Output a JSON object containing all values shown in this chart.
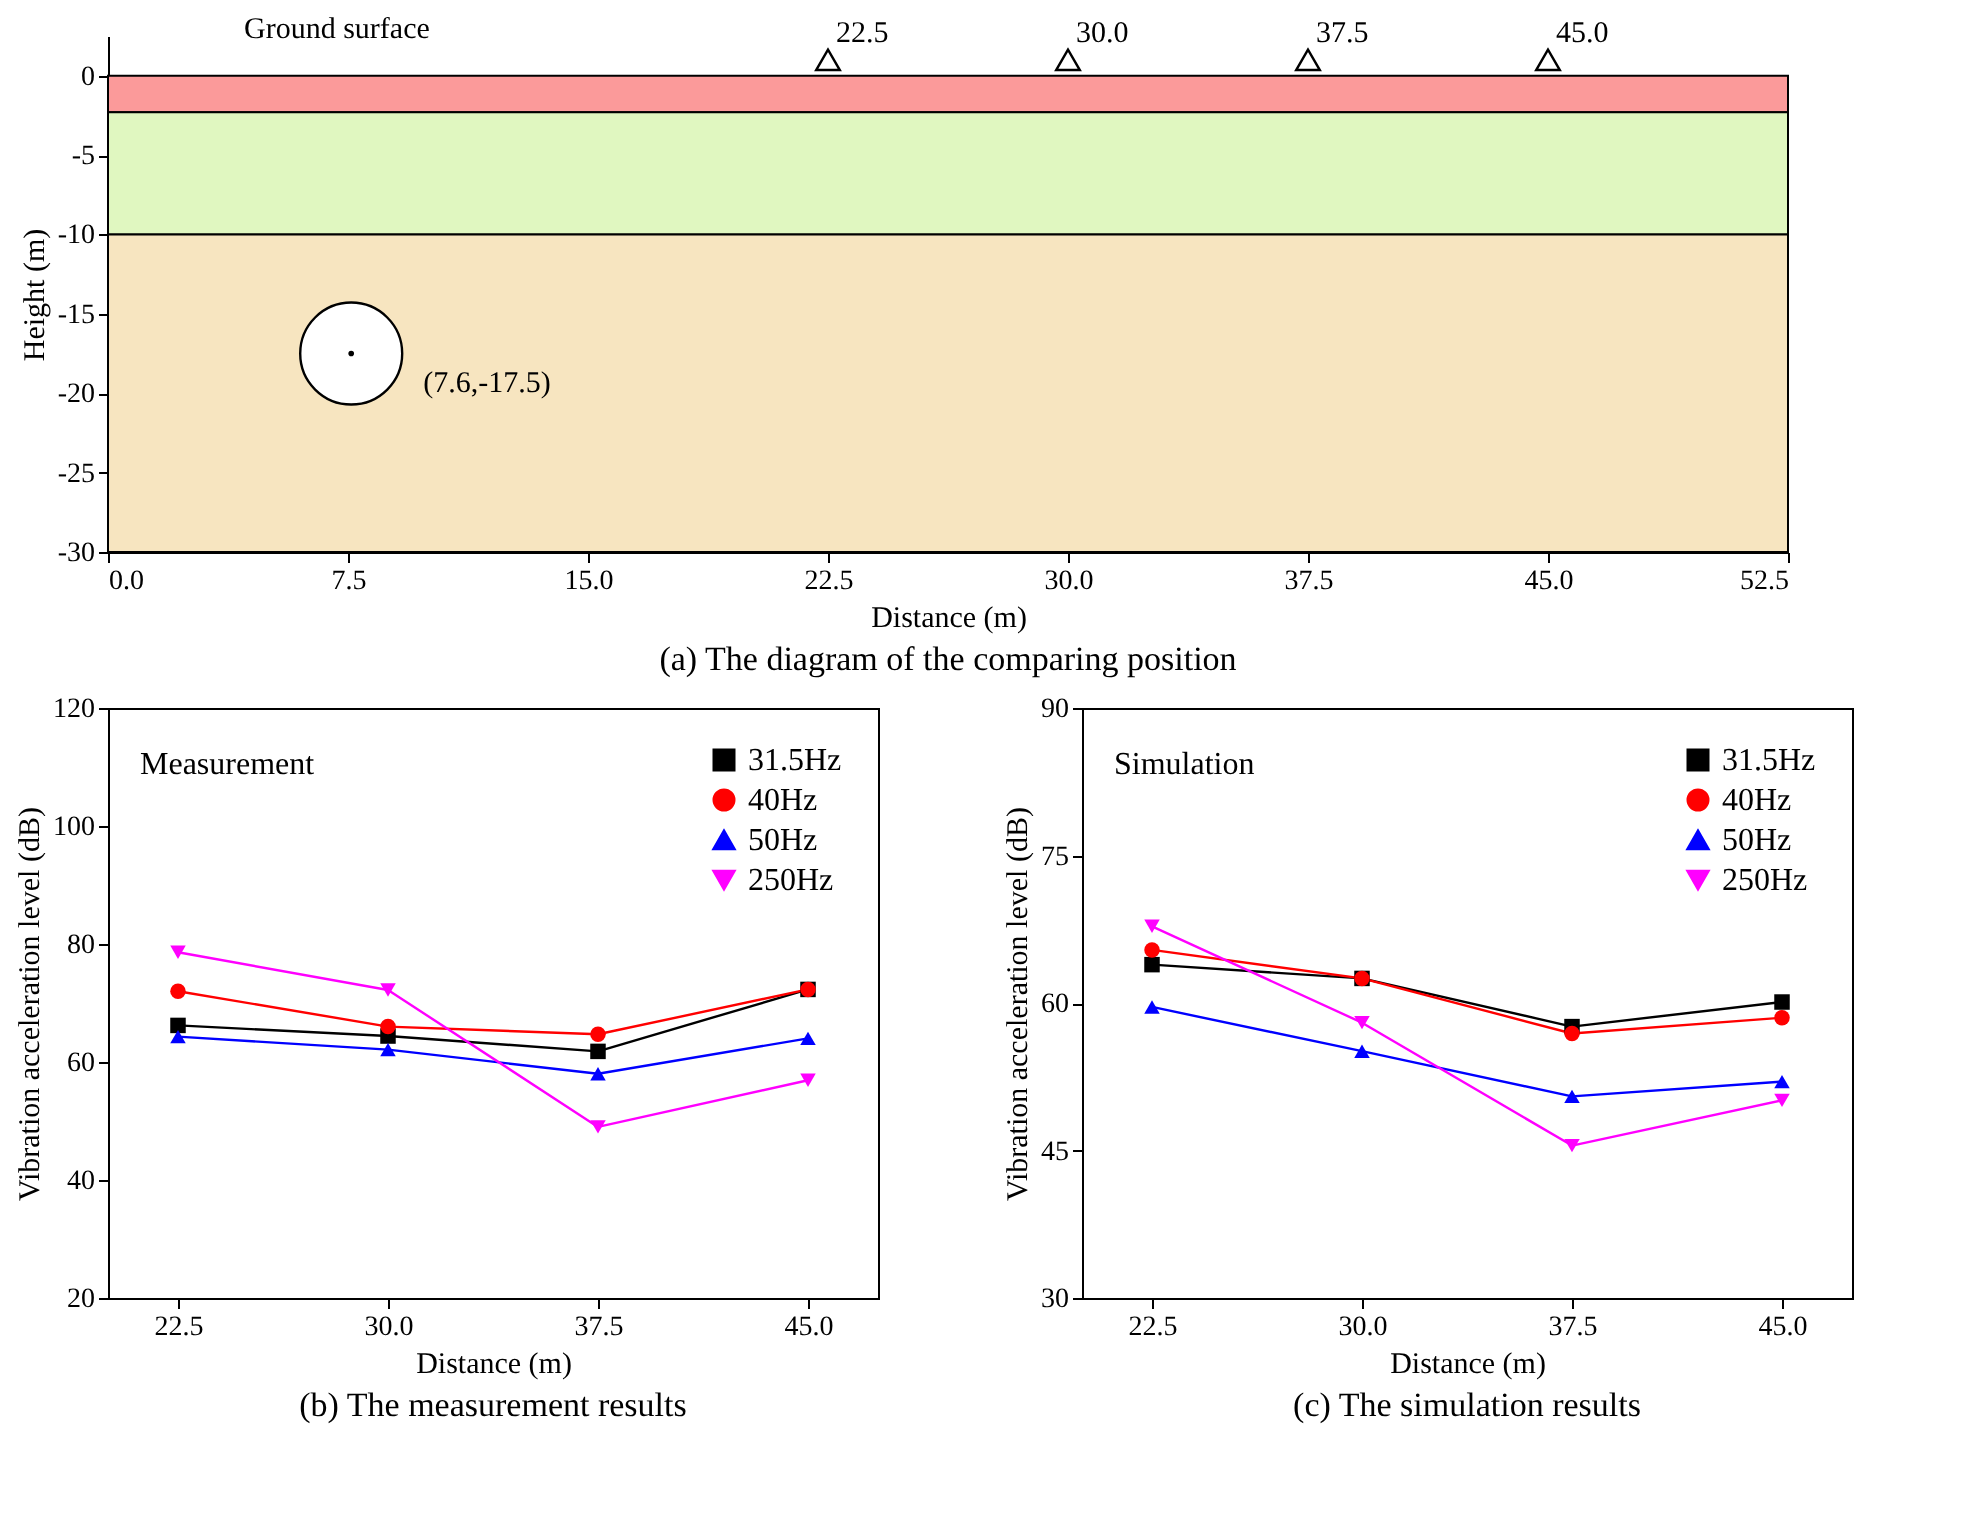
{
  "chart_data": [
    {
      "type": "scatter",
      "title": "(a) The diagram of the comparing position",
      "xlabel": "Distance (m)",
      "ylabel": "Height (m)",
      "xlim": [
        0,
        52.5
      ],
      "ylim": [
        -30,
        2.5
      ],
      "xticks": [
        {
          "value": 0,
          "label": "0.0"
        },
        7.5,
        {
          "value": 15,
          "label": "15.0"
        },
        22.5,
        {
          "value": 30,
          "label": "30.0"
        },
        37.5,
        {
          "value": 45,
          "label": "45.0"
        },
        52.5
      ],
      "yticks": [
        0,
        -5,
        -10,
        -15,
        -20,
        -25,
        -30
      ],
      "grid": false,
      "legend": false,
      "bands": [
        {
          "axis": "y",
          "from": 0,
          "to": -2.3,
          "color": "#fb9a9a"
        },
        {
          "axis": "y",
          "from": -2.3,
          "to": -10,
          "color": "#e0f7c0"
        },
        {
          "axis": "y",
          "from": -10,
          "to": -30,
          "color": "#f7e5c0"
        }
      ],
      "series": [
        {
          "type": "scatter",
          "marker": "circle",
          "color": "#ffffff",
          "x": [
            7.6
          ],
          "values": [
            -17.5
          ]
        },
        {
          "type": "scatter",
          "marker": "triangle",
          "color": "#000000",
          "x": [
            22.5,
            30,
            37.5,
            45
          ],
          "values": [
            1,
            1,
            1,
            1
          ]
        }
      ],
      "annotations": [
        {
          "text": "Ground surface",
          "x": 3.5,
          "y": 0
        },
        {
          "text": "(7.6,-17.5)",
          "x": 7.6,
          "y": -17.5
        },
        {
          "text": "22.5",
          "x": 22.5,
          "y": 1
        },
        {
          "text": "30.0",
          "x": 30,
          "y": 1
        },
        {
          "text": "37.5",
          "x": 37.5,
          "y": 1
        },
        {
          "text": "45.0",
          "x": 45,
          "y": 1
        }
      ]
    },
    {
      "type": "line",
      "title": "(b) The measurement results",
      "xlabel": "Distance (m)",
      "ylabel": "Vibration acceleration level  (dB)",
      "xlim": [
        20,
        47.5
      ],
      "ylim": [
        20,
        120
      ],
      "xticks": [
        22.5,
        {
          "value": 30,
          "label": "30.0"
        },
        37.5,
        {
          "value": 45,
          "label": "45.0"
        }
      ],
      "yticks": [
        20,
        40,
        60,
        80,
        100,
        120
      ],
      "grid": false,
      "legend": "top right",
      "annotations": [
        "Measurement"
      ],
      "series": [
        {
          "name": "31.5Hz",
          "color": "#000000",
          "marker": "square",
          "x": [
            22.5,
            30,
            37.5,
            45
          ],
          "values": [
            66.2,
            64.4,
            61.8,
            72.3
          ]
        },
        {
          "name": "40Hz",
          "color": "#ff0000",
          "marker": "circle",
          "x": [
            22.5,
            30,
            37.5,
            45
          ],
          "values": [
            72.0,
            66.0,
            64.7,
            72.3
          ]
        },
        {
          "name": "50Hz",
          "color": "#0000ff",
          "marker": "triangle",
          "x": [
            22.5,
            30,
            37.5,
            45
          ],
          "values": [
            64.3,
            62.1,
            58.0,
            64.0
          ]
        },
        {
          "name": "250Hz",
          "color": "#ff00ff",
          "marker": "triangle-down",
          "x": [
            22.5,
            30,
            37.5,
            45
          ],
          "values": [
            78.6,
            72.2,
            49.0,
            56.9
          ]
        }
      ]
    },
    {
      "type": "line",
      "title": "(c) The simulation results",
      "xlabel": "Distance (m)",
      "ylabel": "Vibration acceleration level (dB)",
      "xlim": [
        20,
        47.5
      ],
      "ylim": [
        30,
        90
      ],
      "xticks": [
        22.5,
        {
          "value": 30,
          "label": "30.0"
        },
        37.5,
        {
          "value": 45,
          "label": "45.0"
        }
      ],
      "yticks": [
        30,
        45,
        60,
        75,
        90
      ],
      "grid": false,
      "legend": "top right",
      "annotations": [
        "Simulation"
      ],
      "series": [
        {
          "name": "31.5Hz",
          "color": "#000000",
          "marker": "square",
          "x": [
            22.5,
            30,
            37.5,
            45
          ],
          "values": [
            63.9,
            62.5,
            57.6,
            60.1
          ]
        },
        {
          "name": "40Hz",
          "color": "#ff0000",
          "marker": "circle",
          "x": [
            22.5,
            30,
            37.5,
            45
          ],
          "values": [
            65.4,
            62.5,
            56.9,
            58.5
          ]
        },
        {
          "name": "50Hz",
          "color": "#0000ff",
          "marker": "triangle",
          "x": [
            22.5,
            30,
            37.5,
            45
          ],
          "values": [
            59.6,
            55.1,
            50.5,
            52.0
          ]
        },
        {
          "name": "250Hz",
          "color": "#ff00ff",
          "marker": "triangle-down",
          "x": [
            22.5,
            30,
            37.5,
            45
          ],
          "values": [
            67.8,
            58.0,
            45.5,
            50.1
          ]
        }
      ]
    }
  ]
}
